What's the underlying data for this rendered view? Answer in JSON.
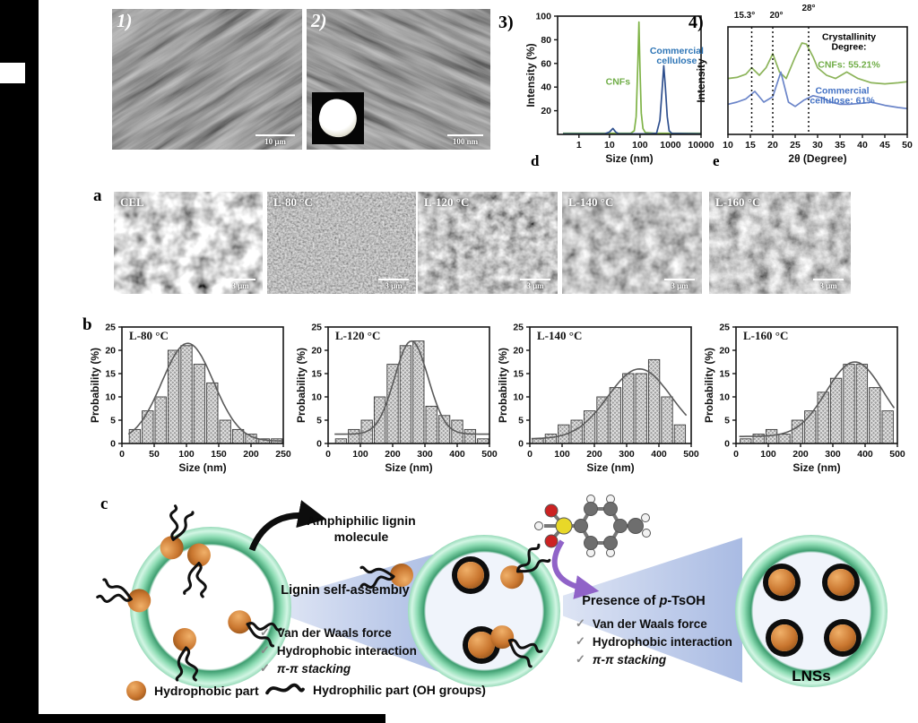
{
  "figure": {
    "panel1": {
      "label": "1)",
      "scalebar": "10 μm"
    },
    "panel2": {
      "label": "2)",
      "scalebar": "100 nm"
    },
    "panel3": {
      "label": "3)",
      "corner": "d"
    },
    "panel4": {
      "label": "4)",
      "corner": "e"
    },
    "row_a": {
      "label": "a",
      "tiles": [
        {
          "title": "CEL",
          "scalebar": "3 μm"
        },
        {
          "title": "L-80 °C",
          "scalebar": "3 μm"
        },
        {
          "title": "L-120 °C",
          "scalebar": "3 μm"
        },
        {
          "title": "L-140 °C",
          "scalebar": "3 μm"
        },
        {
          "title": "L-160 °C",
          "scalebar": "3 μm"
        }
      ]
    },
    "row_b": {
      "label": "b"
    },
    "scheme": {
      "label": "c",
      "amphiphilic_line1": "Amphiphilic lignin",
      "amphiphilic_line2": "molecule",
      "step1_title": "Lignin self-assembly",
      "step2_prefix": "Presence of ",
      "step2_italic": "p",
      "step2_suffix": "-TsOH",
      "checkmark": "✓",
      "forces": [
        "Van der Waals force",
        "Hydrophobic interaction",
        "π-π stacking"
      ],
      "product_label": "LNSs",
      "legend": [
        {
          "text": "Hydrophobic part"
        },
        {
          "text": "Hydrophilic part (OH groups)"
        }
      ],
      "colors": {
        "ring_green": "#66c294",
        "sphere_orange": "#c9762f",
        "wedge_blue": "#a9bbe3",
        "arrow_purple": "#9063c8",
        "navy_text": "#17255c"
      }
    }
  },
  "chart_data": [
    {
      "type": "line",
      "title": "",
      "xlabel": "Size (nm)",
      "ylabel": "Intensity (%)",
      "x_scale": "log",
      "xlim": [
        0.2,
        10000
      ],
      "ylim": [
        0,
        100
      ],
      "x_ticks": [
        1,
        10,
        100,
        1000,
        10000
      ],
      "y_ticks": [
        20,
        40,
        60,
        80,
        100
      ],
      "size": [
        210,
        182
      ],
      "layout": {
        "l": 40,
        "r": 10,
        "t": 12,
        "b": 38
      },
      "series": [
        {
          "name": "CNFs",
          "color": "#7fb347",
          "x": [
            0.3,
            5,
            20,
            50,
            65,
            75,
            85,
            92,
            100,
            110,
            125,
            150,
            300,
            10000
          ],
          "y": [
            1,
            1,
            1,
            1,
            3,
            15,
            60,
            95,
            55,
            18,
            5,
            1.5,
            1,
            1
          ]
        },
        {
          "name": "Commercial cellulose",
          "color": "#2e4f8e",
          "x": [
            0.3,
            7,
            10,
            13,
            16,
            20,
            200,
            350,
            450,
            520,
            600,
            680,
            780,
            900,
            1100,
            10000
          ],
          "y": [
            0.5,
            0.5,
            2,
            5,
            2,
            0.5,
            0.5,
            1,
            12,
            35,
            58,
            40,
            15,
            3,
            0.8,
            0.5
          ]
        }
      ],
      "annotations": [
        {
          "x": 48,
          "y": 42,
          "color": "#70ad47",
          "lines": [
            "CNFs"
          ],
          "anchor": "end"
        },
        {
          "x": 1600,
          "y": 68,
          "color": "#2e75b6",
          "lines": [
            "Commercial",
            "cellulose"
          ],
          "anchor": "middle"
        }
      ]
    },
    {
      "type": "line",
      "title": "",
      "xlabel": "2θ (Degree)",
      "ylabel": "Intensity",
      "xlim": [
        10,
        50
      ],
      "ylim": [
        0,
        100
      ],
      "x_ticks": [
        10,
        15,
        20,
        25,
        30,
        35,
        40,
        45,
        50
      ],
      "size": [
        234,
        182
      ],
      "layout": {
        "l": 26,
        "r": 8,
        "t": 24,
        "b": 38
      },
      "dashed_lines": [
        {
          "x": 15.3,
          "label": "15.3°",
          "dx": -8,
          "ly": 14
        },
        {
          "x": 20,
          "label": "20°",
          "dx": 4,
          "ly": 14
        },
        {
          "x": 28,
          "label": "28°",
          "dx": 0,
          "ly": 6
        }
      ],
      "series": [
        {
          "name": "CNFs",
          "color": "#8cb45a",
          "x": [
            10,
            12,
            14,
            15.3,
            17,
            18.5,
            20,
            21.5,
            23,
            25,
            26.5,
            27.5,
            29,
            30,
            32,
            34,
            36.5,
            39,
            42,
            45,
            48,
            50
          ],
          "y": [
            52,
            53,
            56,
            62,
            55,
            62,
            75,
            58,
            52,
            72,
            85,
            84,
            72,
            62,
            55,
            52,
            58,
            52,
            48,
            47,
            48,
            49
          ]
        },
        {
          "name": "Commercial cellulose",
          "color": "#6b85c9",
          "x": [
            10,
            12,
            14,
            16,
            18,
            20,
            21.8,
            23.5,
            25,
            27,
            29,
            31,
            33,
            35,
            37,
            40,
            42,
            45,
            48,
            50
          ],
          "y": [
            28,
            30,
            33,
            40,
            30,
            35,
            58,
            30,
            26,
            32,
            36,
            34,
            30,
            28,
            28,
            29,
            30,
            27,
            25,
            24
          ]
        }
      ],
      "annotations": [
        {
          "x": 37,
          "y": 88,
          "color": "#000000",
          "lines": [
            "Crystallinity",
            "Degree:"
          ],
          "anchor": "middle"
        },
        {
          "x": 37,
          "y": 62,
          "color": "#70ad47",
          "lines": [
            "CNFs: 55.21%"
          ],
          "anchor": "middle"
        },
        {
          "x": 35.5,
          "y": 38,
          "color": "#4472c4",
          "lines": [
            "Commercial",
            "cellulose: 61%"
          ],
          "anchor": "middle"
        }
      ]
    },
    {
      "type": "bar",
      "title": "L-80 °C",
      "xlabel": "Size (nm)",
      "ylabel": "Probability (%)",
      "xlim": [
        0,
        250
      ],
      "ylim": [
        0,
        25
      ],
      "x_ticks": [
        0,
        50,
        100,
        150,
        200,
        250
      ],
      "y_ticks": [
        0,
        5,
        10,
        15,
        20,
        25
      ],
      "size": [
        230,
        178
      ],
      "layout": {
        "l": 40,
        "r": 10,
        "t": 10,
        "b": 38
      },
      "bins": {
        "start": 10,
        "width": 20
      },
      "values": [
        3,
        7,
        10,
        20,
        21,
        17,
        13,
        5,
        3,
        2,
        1,
        1
      ],
      "curve": {
        "base": 0.5,
        "peak": 21,
        "mu": 102,
        "sigma": 40
      }
    },
    {
      "type": "bar",
      "title": "L-120 °C",
      "xlabel": "Size (nm)",
      "ylabel": "Probability (%)",
      "xlim": [
        0,
        500
      ],
      "ylim": [
        0,
        25
      ],
      "x_ticks": [
        0,
        100,
        200,
        300,
        400,
        500
      ],
      "y_ticks": [
        0,
        5,
        10,
        15,
        20,
        25
      ],
      "size": [
        230,
        178
      ],
      "layout": {
        "l": 40,
        "r": 10,
        "t": 10,
        "b": 38
      },
      "bins": {
        "start": 20,
        "width": 40
      },
      "values": [
        1,
        3,
        5,
        10,
        17,
        21,
        22,
        8,
        6,
        5,
        3,
        1
      ],
      "curve": {
        "base": 2,
        "peak": 20,
        "mu": 258,
        "sigma": 52
      }
    },
    {
      "type": "bar",
      "title": "L-140 °C",
      "xlabel": "Size (nm)",
      "ylabel": "Probability (%)",
      "xlim": [
        0,
        500
      ],
      "ylim": [
        0,
        25
      ],
      "x_ticks": [
        0,
        100,
        200,
        300,
        400,
        500
      ],
      "y_ticks": [
        0,
        5,
        10,
        15,
        20,
        25
      ],
      "size": [
        230,
        178
      ],
      "layout": {
        "l": 40,
        "r": 10,
        "t": 10,
        "b": 38
      },
      "bins": {
        "start": 5,
        "width": 40
      },
      "values": [
        1,
        2,
        4,
        5,
        7,
        10,
        12,
        15,
        15,
        18,
        10,
        4
      ],
      "curve": {
        "base": 1,
        "peak": 15,
        "mu": 340,
        "sigma": 98
      }
    },
    {
      "type": "bar",
      "title": "L-160 °C",
      "xlabel": "Size (nm)",
      "ylabel": "Probability (%)",
      "xlim": [
        0,
        500
      ],
      "ylim": [
        0,
        25
      ],
      "x_ticks": [
        0,
        100,
        200,
        300,
        400,
        500
      ],
      "y_ticks": [
        0,
        5,
        10,
        15,
        20,
        25
      ],
      "size": [
        230,
        178
      ],
      "layout": {
        "l": 40,
        "r": 10,
        "t": 10,
        "b": 38
      },
      "bins": {
        "start": 10,
        "width": 40
      },
      "values": [
        1,
        2,
        3,
        2,
        5,
        7,
        11,
        14,
        17,
        17,
        12,
        7
      ],
      "curve": {
        "base": 1.5,
        "peak": 16,
        "mu": 368,
        "sigma": 88
      }
    }
  ]
}
